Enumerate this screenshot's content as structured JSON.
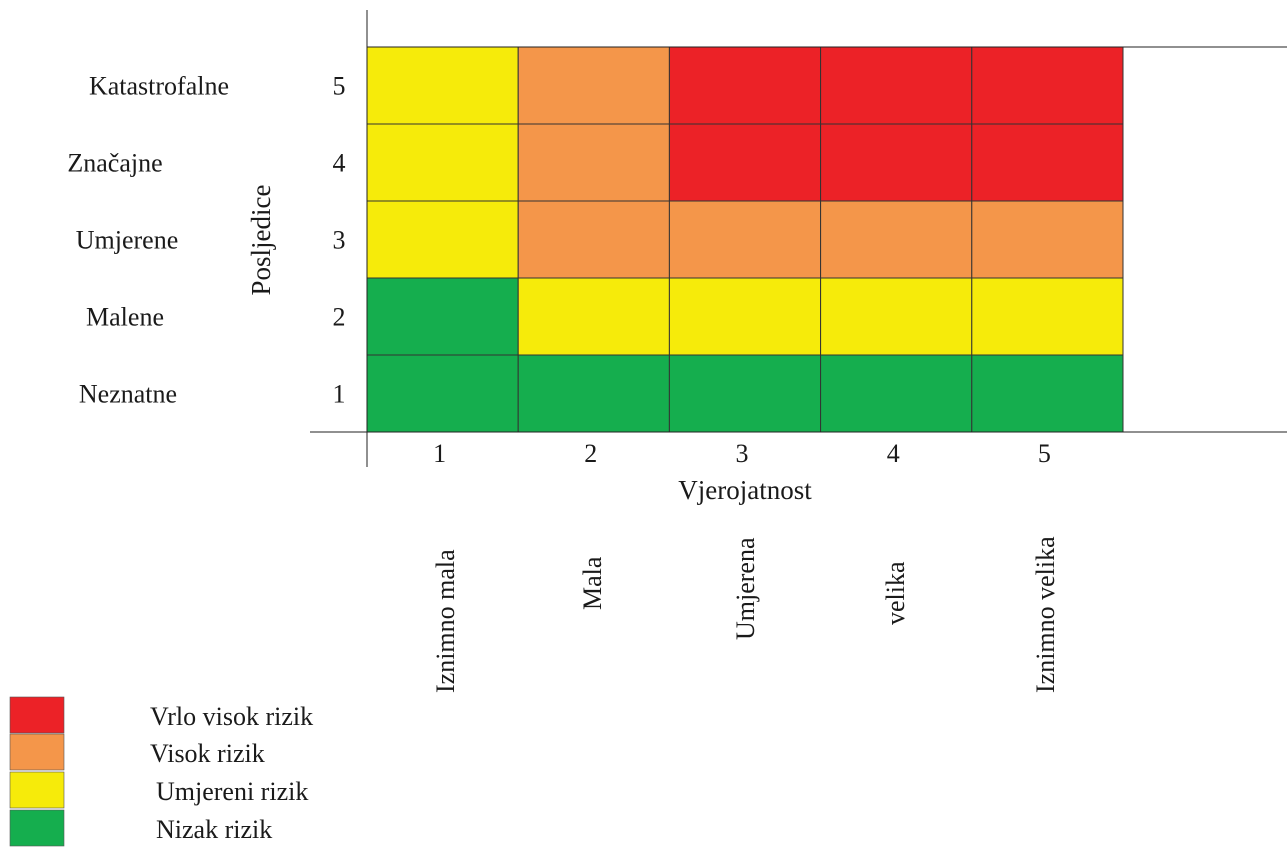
{
  "chart_data": {
    "type": "heatmap",
    "title": "",
    "xlabel": "Vjerojatnost",
    "ylabel": "Posljedice",
    "x_ticks": [
      "1",
      "2",
      "3",
      "4",
      "5"
    ],
    "x_descriptions": [
      "Iznimno mala",
      "Mala",
      "Umjerena",
      "velika",
      "Iznimno velika"
    ],
    "y_ticks": [
      "1",
      "2",
      "3",
      "4",
      "5"
    ],
    "y_descriptions": [
      "Neznatne",
      "Malene",
      "Umjerene",
      "Značajne",
      "Katastrofalne"
    ],
    "cells": [
      {
        "consequence": 5,
        "levels": [
          "umjereni",
          "visok",
          "vrlo_visok",
          "vrlo_visok",
          "vrlo_visok"
        ]
      },
      {
        "consequence": 4,
        "levels": [
          "umjereni",
          "visok",
          "vrlo_visok",
          "vrlo_visok",
          "vrlo_visok"
        ]
      },
      {
        "consequence": 3,
        "levels": [
          "umjereni",
          "visok",
          "visok",
          "visok",
          "visok"
        ]
      },
      {
        "consequence": 2,
        "levels": [
          "nizak",
          "umjereni",
          "umjereni",
          "umjereni",
          "umjereni"
        ]
      },
      {
        "consequence": 1,
        "levels": [
          "nizak",
          "nizak",
          "nizak",
          "nizak",
          "nizak"
        ]
      }
    ],
    "legend": [
      {
        "key": "vrlo_visok",
        "label": "Vrlo visok rizik",
        "color": "#ec2227"
      },
      {
        "key": "visok",
        "label": "Visok rizik",
        "color": "#f4964a"
      },
      {
        "key": "umjereni",
        "label": "Umjereni rizik",
        "color": "#f6eb0a"
      },
      {
        "key": "nizak",
        "label": "Nizak rizik",
        "color": "#15ae4e"
      }
    ],
    "legend_placement": "bottom-left",
    "grid": true
  }
}
